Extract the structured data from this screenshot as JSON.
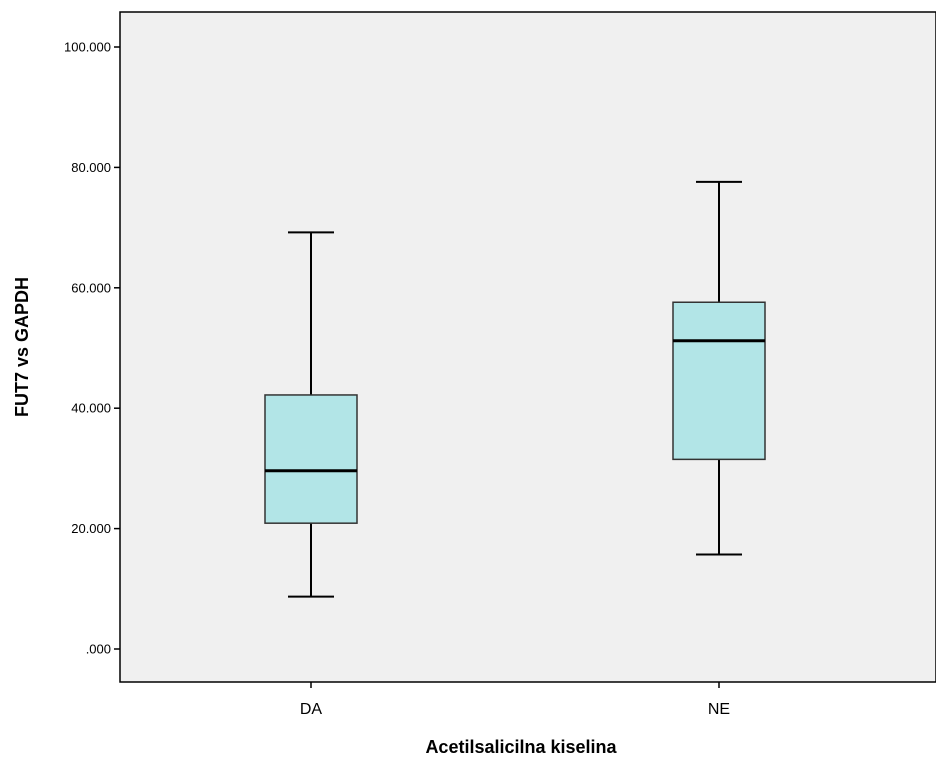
{
  "chart_data": {
    "type": "boxplot",
    "title": "",
    "xlabel": "Acetilsalicilna kiselina",
    "ylabel": "FUT7 vs GAPDH",
    "ylim": [
      -5,
      106
    ],
    "y_ticks": [
      0,
      20,
      40,
      60,
      80,
      100
    ],
    "y_tick_labels": [
      ".000",
      "20.000",
      "40.000",
      "60.000",
      "80.000",
      "100.000"
    ],
    "categories": [
      "DA",
      "NE"
    ],
    "boxes": [
      {
        "category": "DA",
        "min": 8.7,
        "q1": 20.9,
        "median": 29.6,
        "q3": 42.2,
        "max": 69.2
      },
      {
        "category": "NE",
        "min": 15.7,
        "q1": 31.5,
        "median": 51.2,
        "q3": 57.6,
        "max": 77.6
      }
    ],
    "grid": false,
    "colors": {
      "plot_background": "#f0f0f0",
      "box_fill": "#b2e5e7",
      "line": "#000000"
    }
  }
}
